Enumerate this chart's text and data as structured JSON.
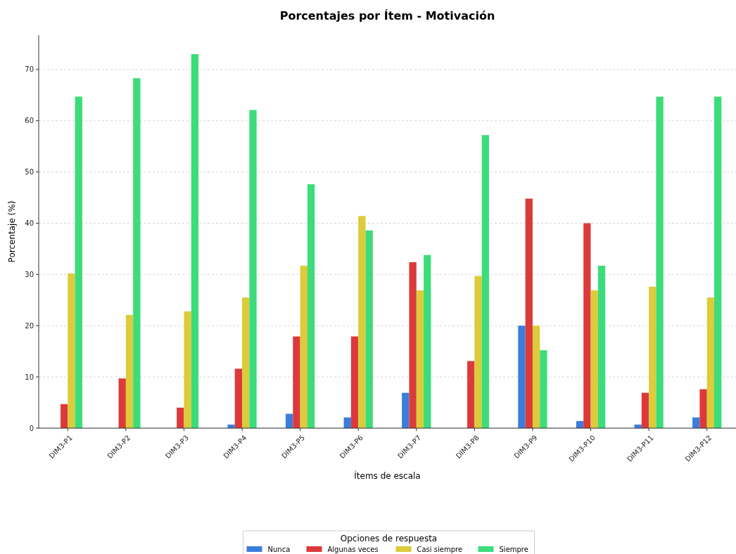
{
  "chart_data": {
    "type": "bar",
    "title": "Porcentajes por Ítem - Motivación",
    "xlabel": "Ítems de escala",
    "ylabel": "Porcentaje (%)",
    "legend_title": "Opciones de respuesta",
    "categories": [
      "DIM3-P1",
      "DIM3-P2",
      "DIM3-P3",
      "DIM3-P4",
      "DIM3-P5",
      "DIM3-P6",
      "DIM3-P7",
      "DIM3-P8",
      "DIM3-P9",
      "DIM3-P10",
      "DIM3-P11",
      "DIM3-P12"
    ],
    "series": [
      {
        "name": "Nunca",
        "color": "#3b7ddd",
        "values": [
          0,
          0,
          0,
          0.7,
          2.8,
          2.1,
          6.9,
          0,
          20.0,
          1.4,
          0.7,
          2.1
        ]
      },
      {
        "name": "Algunas veces",
        "color": "#dc3a3a",
        "values": [
          4.7,
          9.7,
          4.0,
          11.6,
          17.9,
          17.9,
          32.4,
          13.1,
          44.8,
          40.0,
          6.9,
          7.6
        ]
      },
      {
        "name": "Casi siempre",
        "color": "#dccb3a",
        "values": [
          30.2,
          22.1,
          22.8,
          25.5,
          31.7,
          41.4,
          26.9,
          29.7,
          20.0,
          26.9,
          27.6,
          25.5
        ]
      },
      {
        "name": "Siempre",
        "color": "#3ddc7a",
        "values": [
          64.7,
          68.3,
          73.0,
          62.1,
          47.6,
          38.6,
          33.8,
          57.2,
          15.2,
          31.7,
          64.7,
          64.7
        ]
      }
    ],
    "ylim": [
      0,
      76.7
    ],
    "yticks": [
      0,
      10,
      20,
      30,
      40,
      50,
      60,
      70
    ],
    "grid": "y",
    "legend": "bottom"
  }
}
